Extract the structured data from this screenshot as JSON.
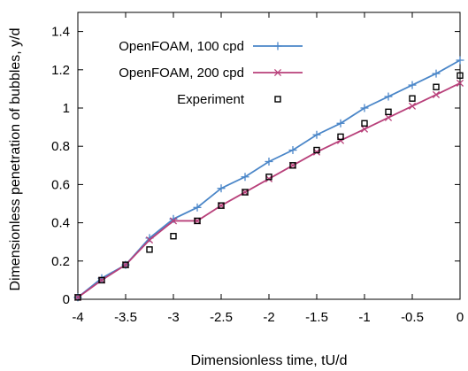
{
  "chart_data": {
    "type": "line",
    "xlabel": "Dimensionless time, tU/d",
    "ylabel": "Dimensionless penetration of bubbles, y/d",
    "xlim": [
      -4,
      0
    ],
    "ylim": [
      0,
      1.5
    ],
    "xticks": [
      -4,
      -3.5,
      -3,
      -2.5,
      -2,
      -1.5,
      -1,
      -0.5,
      0
    ],
    "xtick_labels": [
      "-4",
      "-3.5",
      "-3",
      "-2.5",
      "-2",
      "-1.5",
      "-1",
      "-0.5",
      "0"
    ],
    "yticks": [
      0,
      0.2,
      0.4,
      0.6,
      0.8,
      1,
      1.2,
      1.4
    ],
    "ytick_labels": [
      "0",
      "0.2",
      "0.4",
      "0.6",
      "0.8",
      "1",
      "1.2",
      "1.4"
    ],
    "grid": false,
    "legend_position": "top-right",
    "series": [
      {
        "name": "OpenFOAM, 100 cpd",
        "style": "line-plus",
        "color": "#4a86c8",
        "x": [
          -4,
          -3.75,
          -3.5,
          -3.25,
          -3,
          -2.75,
          -2.5,
          -2.25,
          -2,
          -1.75,
          -1.5,
          -1.25,
          -1,
          -0.75,
          -0.5,
          -0.25,
          0
        ],
        "y": [
          0.01,
          0.11,
          0.18,
          0.32,
          0.42,
          0.48,
          0.58,
          0.64,
          0.72,
          0.78,
          0.86,
          0.92,
          1.0,
          1.06,
          1.12,
          1.18,
          1.25
        ]
      },
      {
        "name": "OpenFOAM, 200 cpd",
        "style": "line-cross",
        "color": "#b8407a",
        "x": [
          -4,
          -3.75,
          -3.5,
          -3.25,
          -3,
          -2.75,
          -2.5,
          -2.25,
          -2,
          -1.75,
          -1.5,
          -1.25,
          -1,
          -0.75,
          -0.5,
          -0.25,
          0
        ],
        "y": [
          0.01,
          0.1,
          0.18,
          0.31,
          0.41,
          0.41,
          0.49,
          0.56,
          0.63,
          0.7,
          0.77,
          0.83,
          0.89,
          0.95,
          1.01,
          1.07,
          1.13
        ]
      },
      {
        "name": "Experiment",
        "style": "marker-square",
        "color": "#000000",
        "x": [
          -4,
          -3.75,
          -3.5,
          -3.25,
          -3,
          -2.75,
          -2.5,
          -2.25,
          -2,
          -1.75,
          -1.5,
          -1.25,
          -1,
          -0.75,
          -0.5,
          -0.25,
          0
        ],
        "y": [
          0.01,
          0.1,
          0.18,
          0.26,
          0.33,
          0.41,
          0.49,
          0.56,
          0.64,
          0.7,
          0.78,
          0.85,
          0.92,
          0.98,
          1.05,
          1.11,
          1.17
        ]
      }
    ]
  }
}
